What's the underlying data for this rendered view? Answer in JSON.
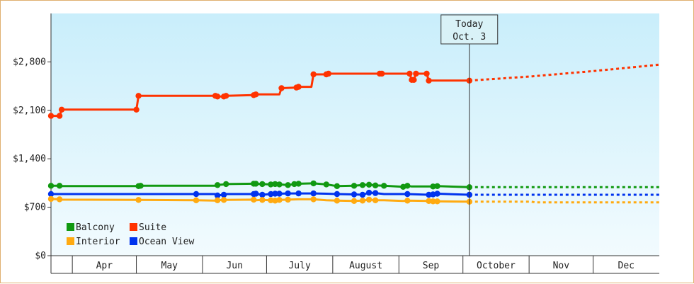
{
  "chart_data": {
    "type": "line",
    "title": "",
    "xlabel": "",
    "ylabel": "",
    "x_range": [
      "Mar 21",
      "Dec 31"
    ],
    "ylim": [
      0,
      3500
    ],
    "y_ticks": [
      0,
      700,
      1400,
      2100,
      2800
    ],
    "y_tick_labels": [
      "$0",
      "$700",
      "$1,400",
      "$2,100",
      "$2,800"
    ],
    "months": [
      {
        "label": "Apr",
        "start": "Apr 1",
        "end": "Apr 30"
      },
      {
        "label": "May",
        "start": "May 1",
        "end": "May 31"
      },
      {
        "label": "Jun",
        "start": "Jun 1",
        "end": "Jun 30"
      },
      {
        "label": "July",
        "start": "Jul 1",
        "end": "Jul 31"
      },
      {
        "label": "August",
        "start": "Aug 1",
        "end": "Aug 31"
      },
      {
        "label": "Sep",
        "start": "Sep 1",
        "end": "Sep 30"
      },
      {
        "label": "October",
        "start": "Oct 1",
        "end": "Oct 31"
      },
      {
        "label": "Nov",
        "start": "Nov 1",
        "end": "Nov 30"
      },
      {
        "label": "Dec",
        "start": "Dec 1",
        "end": "Dec 31"
      }
    ],
    "today": {
      "line1": "Today",
      "line2": "Oct. 3",
      "date": "Oct 3"
    },
    "grid": false,
    "legend_position": "bottom-left",
    "series": [
      {
        "name": "Suite",
        "color": "#ff3300",
        "points": [
          [
            "Mar 21",
            2020
          ],
          [
            "Mar 25",
            2020
          ],
          [
            "Mar 26",
            2110
          ],
          [
            "Apr 30",
            2110
          ],
          [
            "May 1",
            2310
          ],
          [
            "Jun 6",
            2310
          ],
          [
            "Jun 7",
            2300
          ],
          [
            "Jun 10",
            2300
          ],
          [
            "Jun 11",
            2310
          ],
          [
            "Jun 24",
            2320
          ],
          [
            "Jun 25",
            2330
          ],
          [
            "Jul 6",
            2330
          ],
          [
            "Jul 7",
            2420
          ],
          [
            "Jul 14",
            2430
          ],
          [
            "Jul 15",
            2440
          ],
          [
            "Jul 21",
            2440
          ],
          [
            "Jul 22",
            2620
          ],
          [
            "Jul 28",
            2620
          ],
          [
            "Jul 29",
            2630
          ],
          [
            "Aug 22",
            2630
          ],
          [
            "Aug 23",
            2630
          ],
          [
            "Sep 5",
            2630
          ],
          [
            "Sep 6",
            2540
          ],
          [
            "Sep 7",
            2540
          ],
          [
            "Sep 8",
            2630
          ],
          [
            "Sep 13",
            2630
          ],
          [
            "Sep 14",
            2530
          ],
          [
            "Oct 3",
            2530
          ]
        ],
        "markers": [
          "Mar 21",
          "Mar 25",
          "Mar 26",
          "Apr 30",
          "May 1",
          "Jun 6",
          "Jun 7",
          "Jun 10",
          "Jun 11",
          "Jun 24",
          "Jun 25",
          "Jul 7",
          "Jul 14",
          "Jul 15",
          "Jul 22",
          "Jul 28",
          "Jul 29",
          "Aug 22",
          "Aug 23",
          "Sep 5",
          "Sep 6",
          "Sep 7",
          "Sep 8",
          "Sep 13",
          "Sep 14",
          "Oct 3"
        ],
        "forecast": [
          [
            "Oct 3",
            2530
          ],
          [
            "Nov 1",
            2590
          ],
          [
            "Dec 1",
            2670
          ],
          [
            "Dec 31",
            2760
          ]
        ]
      },
      {
        "name": "Balcony",
        "color": "#119911",
        "points": [
          [
            "Mar 21",
            1010
          ],
          [
            "Mar 25",
            1010
          ],
          [
            "Mar 26",
            1005
          ],
          [
            "May 1",
            1005
          ],
          [
            "May 2",
            1010
          ],
          [
            "Jun 6",
            1010
          ],
          [
            "Jun 7",
            1020
          ],
          [
            "Jun 10",
            1030
          ],
          [
            "Jun 11",
            1035
          ],
          [
            "Jun 24",
            1040
          ],
          [
            "Jun 25",
            1040
          ],
          [
            "Jun 28",
            1035
          ],
          [
            "Jul 2",
            1030
          ],
          [
            "Jul 4",
            1035
          ],
          [
            "Jul 6",
            1030
          ],
          [
            "Jul 10",
            1020
          ],
          [
            "Jul 13",
            1035
          ],
          [
            "Jul 15",
            1040
          ],
          [
            "Jul 22",
            1045
          ],
          [
            "Jul 28",
            1030
          ],
          [
            "Aug 2",
            1005
          ],
          [
            "Aug 10",
            1010
          ],
          [
            "Aug 14",
            1020
          ],
          [
            "Aug 17",
            1025
          ],
          [
            "Aug 20",
            1015
          ],
          [
            "Aug 24",
            1010
          ],
          [
            "Sep 2",
            995
          ],
          [
            "Sep 4",
            1010
          ],
          [
            "Sep 6",
            1000
          ],
          [
            "Sep 16",
            1000
          ],
          [
            "Sep 18",
            1005
          ],
          [
            "Oct 3",
            990
          ]
        ],
        "markers": [
          "Mar 21",
          "Mar 25",
          "May 1",
          "May 2",
          "Jun 7",
          "Jun 11",
          "Jun 24",
          "Jun 25",
          "Jun 28",
          "Jul 2",
          "Jul 4",
          "Jul 6",
          "Jul 10",
          "Jul 13",
          "Jul 15",
          "Jul 22",
          "Jul 28",
          "Aug 2",
          "Aug 10",
          "Aug 14",
          "Aug 17",
          "Aug 20",
          "Aug 24",
          "Sep 2",
          "Sep 4",
          "Sep 16",
          "Sep 18",
          "Oct 3"
        ],
        "forecast": [
          [
            "Oct 3",
            990
          ],
          [
            "Dec 31",
            990
          ]
        ]
      },
      {
        "name": "Ocean View",
        "color": "#0033ee",
        "points": [
          [
            "Mar 21",
            890
          ],
          [
            "Mar 25",
            890
          ],
          [
            "Mar 26",
            890
          ],
          [
            "May 28",
            890
          ],
          [
            "Jun 6",
            890
          ],
          [
            "Jun 7",
            870
          ],
          [
            "Jun 10",
            880
          ],
          [
            "Jun 11",
            890
          ],
          [
            "Jun 24",
            890
          ],
          [
            "Jun 25",
            895
          ],
          [
            "Jun 28",
            880
          ],
          [
            "Jul 2",
            890
          ],
          [
            "Jul 4",
            895
          ],
          [
            "Jul 6",
            895
          ],
          [
            "Jul 10",
            900
          ],
          [
            "Jul 15",
            900
          ],
          [
            "Jul 22",
            900
          ],
          [
            "Jul 28",
            895
          ],
          [
            "Aug 2",
            890
          ],
          [
            "Aug 10",
            885
          ],
          [
            "Aug 14",
            880
          ],
          [
            "Aug 17",
            910
          ],
          [
            "Aug 20",
            905
          ],
          [
            "Aug 24",
            890
          ],
          [
            "Sep 2",
            890
          ],
          [
            "Sep 4",
            890
          ],
          [
            "Sep 14",
            880
          ],
          [
            "Sep 16",
            885
          ],
          [
            "Sep 18",
            895
          ],
          [
            "Oct 3",
            880
          ]
        ],
        "markers": [
          "Mar 21",
          "May 28",
          "Jun 7",
          "Jun 10",
          "Jun 24",
          "Jun 25",
          "Jun 28",
          "Jul 2",
          "Jul 4",
          "Jul 6",
          "Jul 10",
          "Jul 15",
          "Jul 22",
          "Aug 2",
          "Aug 10",
          "Aug 14",
          "Aug 17",
          "Aug 20",
          "Sep 4",
          "Sep 14",
          "Sep 16",
          "Sep 18",
          "Oct 3"
        ],
        "forecast": [
          [
            "Oct 3",
            880
          ],
          [
            "Dec 31",
            880
          ]
        ]
      },
      {
        "name": "Interior",
        "color": "#ffaa11",
        "points": [
          [
            "Mar 21",
            820
          ],
          [
            "Mar 25",
            815
          ],
          [
            "Mar 26",
            810
          ],
          [
            "May 1",
            805
          ],
          [
            "May 28",
            800
          ],
          [
            "Jun 6",
            795
          ],
          [
            "Jun 7",
            800
          ],
          [
            "Jun 10",
            805
          ],
          [
            "Jun 11",
            805
          ],
          [
            "Jun 24",
            810
          ],
          [
            "Jun 25",
            800
          ],
          [
            "Jun 28",
            805
          ],
          [
            "Jul 2",
            800
          ],
          [
            "Jul 4",
            795
          ],
          [
            "Jul 6",
            805
          ],
          [
            "Jul 10",
            810
          ],
          [
            "Jul 15",
            815
          ],
          [
            "Jul 22",
            815
          ],
          [
            "Jul 28",
            800
          ],
          [
            "Aug 2",
            795
          ],
          [
            "Aug 10",
            790
          ],
          [
            "Aug 14",
            795
          ],
          [
            "Aug 17",
            810
          ],
          [
            "Aug 20",
            800
          ],
          [
            "Aug 24",
            800
          ],
          [
            "Sep 2",
            790
          ],
          [
            "Sep 4",
            795
          ],
          [
            "Sep 14",
            790
          ],
          [
            "Sep 16",
            785
          ],
          [
            "Sep 18",
            785
          ],
          [
            "Oct 3",
            780
          ]
        ],
        "markers": [
          "Mar 21",
          "Mar 25",
          "May 1",
          "May 28",
          "Jun 7",
          "Jun 10",
          "Jun 24",
          "Jun 28",
          "Jul 2",
          "Jul 4",
          "Jul 6",
          "Jul 10",
          "Jul 22",
          "Aug 2",
          "Aug 10",
          "Aug 14",
          "Aug 17",
          "Aug 20",
          "Sep 4",
          "Sep 14",
          "Sep 16",
          "Sep 18",
          "Oct 3"
        ],
        "forecast": [
          [
            "Oct 3",
            780
          ],
          [
            "Nov 1",
            780
          ],
          [
            "Nov 3",
            770
          ],
          [
            "Dec 31",
            770
          ]
        ]
      }
    ],
    "legend": [
      {
        "name": "Balcony",
        "color": "#119911"
      },
      {
        "name": "Suite",
        "color": "#ff3300"
      },
      {
        "name": "Interior",
        "color": "#ffaa11"
      },
      {
        "name": "Ocean View",
        "color": "#0033ee"
      }
    ]
  }
}
